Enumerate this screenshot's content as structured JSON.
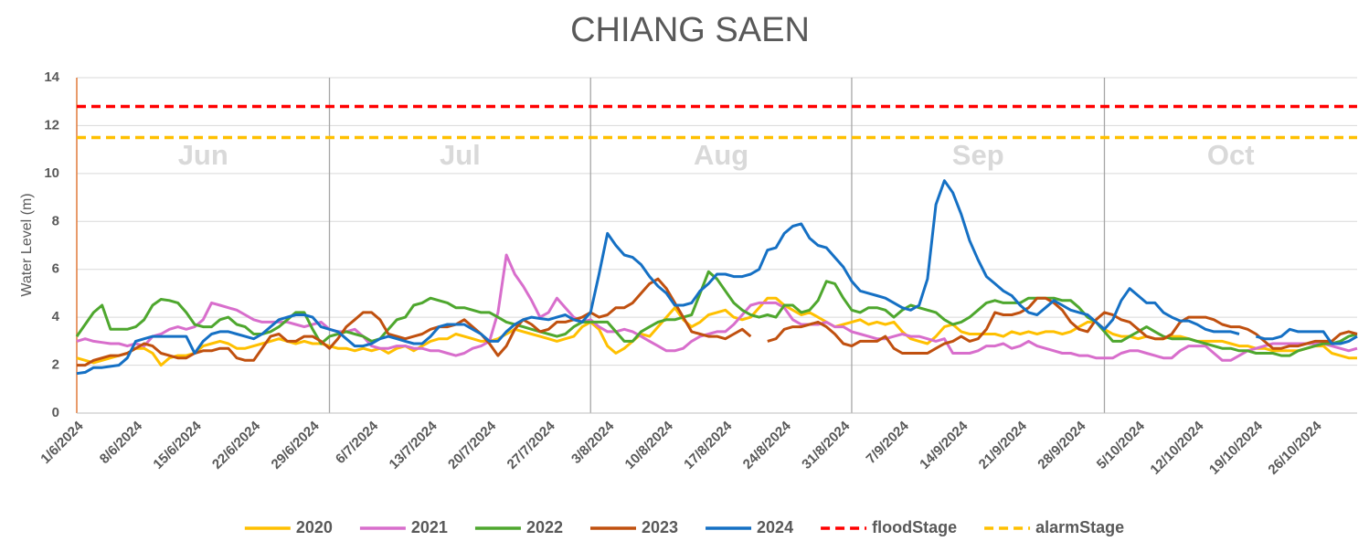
{
  "chart_data": {
    "type": "line",
    "title": "CHIANG SAEN",
    "ylabel": "Water Level (m)",
    "ylim": [
      0,
      14
    ],
    "yticks": [
      0,
      2,
      4,
      6,
      8,
      10,
      12,
      14
    ],
    "grid": true,
    "legend": "bottom",
    "month_labels": [
      "Jun",
      "Jul",
      "Aug",
      "Sep",
      "Oct"
    ],
    "x": [
      "1/6/2024",
      "2/6/2024",
      "3/6/2024",
      "4/6/2024",
      "5/6/2024",
      "6/6/2024",
      "7/6/2024",
      "8/6/2024",
      "9/6/2024",
      "10/6/2024",
      "11/6/2024",
      "12/6/2024",
      "13/6/2024",
      "14/6/2024",
      "15/6/2024",
      "16/6/2024",
      "17/6/2024",
      "18/6/2024",
      "19/6/2024",
      "20/6/2024",
      "21/6/2024",
      "22/6/2024",
      "23/6/2024",
      "24/6/2024",
      "25/6/2024",
      "26/6/2024",
      "27/6/2024",
      "28/6/2024",
      "29/6/2024",
      "30/6/2024",
      "1/7/2024",
      "2/7/2024",
      "3/7/2024",
      "4/7/2024",
      "5/7/2024",
      "6/7/2024",
      "7/7/2024",
      "8/7/2024",
      "9/7/2024",
      "10/7/2024",
      "11/7/2024",
      "12/7/2024",
      "13/7/2024",
      "14/7/2024",
      "15/7/2024",
      "16/7/2024",
      "17/7/2024",
      "18/7/2024",
      "19/7/2024",
      "20/7/2024",
      "21/7/2024",
      "22/7/2024",
      "23/7/2024",
      "24/7/2024",
      "25/7/2024",
      "26/7/2024",
      "27/7/2024",
      "28/7/2024",
      "29/7/2024",
      "30/7/2024",
      "31/7/2024",
      "1/8/2024",
      "2/8/2024",
      "3/8/2024",
      "4/8/2024",
      "5/8/2024",
      "6/8/2024",
      "7/8/2024",
      "8/8/2024",
      "9/8/2024",
      "10/8/2024",
      "11/8/2024",
      "12/8/2024",
      "13/8/2024",
      "14/8/2024",
      "15/8/2024",
      "16/8/2024",
      "17/8/2024",
      "18/8/2024",
      "19/8/2024",
      "20/8/2024",
      "21/8/2024",
      "22/8/2024",
      "23/8/2024",
      "24/8/2024",
      "25/8/2024",
      "26/8/2024",
      "27/8/2024",
      "28/8/2024",
      "29/8/2024",
      "30/8/2024",
      "31/8/2024",
      "1/9/2024",
      "2/9/2024",
      "3/9/2024",
      "4/9/2024",
      "5/9/2024",
      "6/9/2024",
      "7/9/2024",
      "8/9/2024",
      "9/9/2024",
      "10/9/2024",
      "11/9/2024",
      "12/9/2024",
      "13/9/2024",
      "14/9/2024",
      "15/9/2024",
      "16/9/2024",
      "17/9/2024",
      "18/9/2024",
      "19/9/2024",
      "20/9/2024",
      "21/9/2024",
      "22/9/2024",
      "23/9/2024",
      "24/9/2024",
      "25/9/2024",
      "26/9/2024",
      "27/9/2024",
      "28/9/2024",
      "29/9/2024",
      "30/9/2024",
      "1/10/2024",
      "2/10/2024",
      "3/10/2024",
      "4/10/2024",
      "5/10/2024",
      "6/10/2024",
      "7/10/2024",
      "8/10/2024",
      "9/10/2024",
      "10/10/2024",
      "11/10/2024",
      "12/10/2024",
      "13/10/2024",
      "14/10/2024",
      "15/10/2024",
      "16/10/2024",
      "17/10/2024",
      "18/10/2024",
      "19/10/2024",
      "20/10/2024",
      "21/10/2024",
      "22/10/2024",
      "23/10/2024",
      "24/10/2024",
      "25/10/2024",
      "26/10/2024",
      "27/10/2024",
      "28/10/2024",
      "29/10/2024",
      "30/10/2024",
      "31/10/2024"
    ],
    "xticks": [
      "1/6/2024",
      "8/6/2024",
      "15/6/2024",
      "22/6/2024",
      "29/6/2024",
      "6/7/2024",
      "13/7/2024",
      "20/7/2024",
      "27/7/2024",
      "3/8/2024",
      "10/8/2024",
      "17/8/2024",
      "24/8/2024",
      "31/8/2024",
      "7/9/2024",
      "14/9/2024",
      "21/9/2024",
      "28/9/2024",
      "5/10/2024",
      "12/10/2024",
      "19/10/2024",
      "26/10/2024"
    ],
    "series": [
      {
        "name": "2020",
        "color": "#ffc000",
        "values": [
          2.3,
          2.2,
          2.1,
          2.2,
          2.3,
          2.4,
          2.5,
          2.7,
          2.7,
          2.5,
          2.0,
          2.3,
          2.4,
          2.4,
          2.5,
          2.8,
          2.9,
          3.0,
          2.9,
          2.7,
          2.7,
          2.8,
          2.9,
          3.0,
          3.1,
          3.0,
          2.9,
          3.0,
          2.9,
          2.9,
          2.8,
          2.7,
          2.7,
          2.6,
          2.7,
          2.6,
          2.7,
          2.5,
          2.7,
          2.8,
          2.6,
          2.8,
          3.0,
          3.1,
          3.1,
          3.3,
          3.2,
          3.1,
          3.0,
          3.0,
          3.1,
          3.3,
          3.5,
          3.4,
          3.3,
          3.2,
          3.1,
          3.0,
          3.1,
          3.2,
          3.6,
          3.8,
          3.5,
          2.8,
          2.5,
          2.7,
          3.0,
          3.3,
          3.2,
          3.6,
          4.0,
          4.4,
          3.9,
          3.6,
          3.8,
          4.1,
          4.2,
          4.3,
          4.0,
          3.9,
          4.0,
          4.4,
          4.8,
          4.8,
          4.5,
          4.3,
          4.1,
          4.2,
          4.0,
          3.8,
          3.6,
          3.7,
          3.8,
          3.9,
          3.7,
          3.8,
          3.7,
          3.8,
          3.4,
          3.1,
          3.0,
          2.9,
          3.2,
          3.6,
          3.7,
          3.4,
          3.3,
          3.3,
          3.3,
          3.3,
          3.2,
          3.4,
          3.3,
          3.4,
          3.3,
          3.4,
          3.4,
          3.3,
          3.4,
          3.6,
          3.8,
          3.8,
          3.5,
          3.3,
          3.2,
          3.2,
          3.1,
          3.2,
          3.1,
          3.1,
          3.2,
          3.2,
          3.1,
          3.0,
          3.0,
          3.0,
          3.0,
          2.9,
          2.8,
          2.8,
          2.7,
          2.7,
          2.6,
          2.6,
          2.6,
          2.6,
          2.7,
          2.8,
          2.8,
          2.5,
          2.4,
          2.3,
          2.3
        ]
      },
      {
        "name": "2021",
        "color": "#d86ecc",
        "values": [
          3.0,
          3.1,
          3.0,
          2.95,
          2.9,
          2.9,
          2.8,
          2.9,
          2.8,
          3.2,
          3.3,
          3.5,
          3.6,
          3.5,
          3.6,
          3.9,
          4.6,
          4.5,
          4.4,
          4.3,
          4.1,
          3.9,
          3.8,
          3.8,
          3.8,
          3.8,
          3.7,
          3.6,
          3.7,
          3.8,
          3.5,
          3.4,
          3.4,
          3.5,
          3.2,
          2.8,
          2.7,
          2.7,
          2.8,
          2.8,
          2.7,
          2.7,
          2.6,
          2.6,
          2.5,
          2.4,
          2.5,
          2.7,
          2.8,
          3.0,
          4.2,
          6.6,
          5.8,
          5.3,
          4.7,
          4.0,
          4.2,
          4.8,
          4.4,
          4.0,
          3.8,
          3.9,
          3.6,
          3.4,
          3.4,
          3.5,
          3.4,
          3.2,
          3.0,
          2.8,
          2.6,
          2.6,
          2.7,
          3.0,
          3.2,
          3.3,
          3.4,
          3.4,
          3.7,
          4.1,
          4.5,
          4.6,
          4.6,
          4.6,
          4.4,
          3.9,
          3.7,
          3.7,
          3.7,
          3.8,
          3.6,
          3.6,
          3.4,
          3.3,
          3.2,
          3.1,
          3.1,
          3.2,
          3.3,
          3.2,
          3.2,
          3.1,
          3.0,
          3.1,
          2.5,
          2.5,
          2.5,
          2.6,
          2.8,
          2.8,
          2.9,
          2.7,
          2.8,
          3.0,
          2.8,
          2.7,
          2.6,
          2.5,
          2.5,
          2.4,
          2.4,
          2.3,
          2.3,
          2.3,
          2.5,
          2.6,
          2.6,
          2.5,
          2.4,
          2.3,
          2.3,
          2.6,
          2.8,
          2.8,
          2.8,
          2.5,
          2.2,
          2.2,
          2.4,
          2.6,
          2.7,
          2.8,
          2.9,
          2.9,
          2.9,
          2.9,
          2.9,
          2.9,
          2.9,
          2.8,
          2.7,
          2.6,
          2.7
        ]
      },
      {
        "name": "2022",
        "color": "#4ea72e",
        "values": [
          3.2,
          3.7,
          4.2,
          4.5,
          3.5,
          3.5,
          3.5,
          3.6,
          3.9,
          4.5,
          4.75,
          4.7,
          4.6,
          4.2,
          3.7,
          3.6,
          3.6,
          3.9,
          4.0,
          3.7,
          3.6,
          3.3,
          3.3,
          3.4,
          3.6,
          3.9,
          4.2,
          4.2,
          3.5,
          2.9,
          3.2,
          3.3,
          3.4,
          3.3,
          3.2,
          3.0,
          3.1,
          3.5,
          3.9,
          4.0,
          4.5,
          4.6,
          4.8,
          4.7,
          4.6,
          4.4,
          4.4,
          4.3,
          4.2,
          4.2,
          4.0,
          3.8,
          3.7,
          3.6,
          3.5,
          3.4,
          3.3,
          3.2,
          3.3,
          3.6,
          3.8,
          3.8,
          3.8,
          3.8,
          3.4,
          3.0,
          3.0,
          3.4,
          3.6,
          3.8,
          3.9,
          3.9,
          4.0,
          4.1,
          5.0,
          5.9,
          5.6,
          5.1,
          4.6,
          4.3,
          4.1,
          4.0,
          4.1,
          4.0,
          4.5,
          4.5,
          4.2,
          4.3,
          4.7,
          5.5,
          5.4,
          4.8,
          4.3,
          4.2,
          4.4,
          4.4,
          4.3,
          4.0,
          4.3,
          4.5,
          4.4,
          4.3,
          4.2,
          3.9,
          3.7,
          3.8,
          4.0,
          4.3,
          4.6,
          4.7,
          4.6,
          4.6,
          4.6,
          4.8,
          4.8,
          4.8,
          4.8,
          4.7,
          4.7,
          4.4,
          4.0,
          3.8,
          3.4,
          3.0,
          3.0,
          3.2,
          3.4,
          3.6,
          3.4,
          3.2,
          3.1,
          3.1,
          3.1,
          3.0,
          2.9,
          2.8,
          2.7,
          2.7,
          2.6,
          2.6,
          2.5,
          2.5,
          2.5,
          2.4,
          2.4,
          2.6,
          2.7,
          2.8,
          2.9,
          2.9,
          3.0,
          3.2,
          3.3
        ]
      },
      {
        "name": "2023",
        "color": "#c0500f",
        "values": [
          2.0,
          2.0,
          2.2,
          2.3,
          2.4,
          2.4,
          2.5,
          2.7,
          2.9,
          2.8,
          2.5,
          2.4,
          2.3,
          2.3,
          2.5,
          2.6,
          2.6,
          2.7,
          2.7,
          2.3,
          2.2,
          2.2,
          2.7,
          3.2,
          3.3,
          3.0,
          3.0,
          3.2,
          3.2,
          3.0,
          2.7,
          3.1,
          3.6,
          3.9,
          4.2,
          4.2,
          3.9,
          3.3,
          3.2,
          3.1,
          3.2,
          3.3,
          3.5,
          3.6,
          3.6,
          3.7,
          3.9,
          3.6,
          3.3,
          2.9,
          2.4,
          2.8,
          3.5,
          3.9,
          3.7,
          3.4,
          3.5,
          3.8,
          3.8,
          3.9,
          4.0,
          4.2,
          4.0,
          4.1,
          4.4,
          4.4,
          4.6,
          5.0,
          5.4,
          5.6,
          5.2,
          4.6,
          4.0,
          3.4,
          3.3,
          3.2,
          3.2,
          3.1,
          3.3,
          3.5,
          3.2,
          null,
          3.0,
          3.1,
          3.5,
          3.6,
          3.6,
          3.7,
          3.8,
          3.6,
          3.3,
          2.9,
          2.8,
          3.0,
          3.0,
          3.0,
          3.2,
          2.7,
          2.5,
          2.5,
          2.5,
          2.5,
          2.7,
          2.9,
          3.0,
          3.2,
          3.0,
          3.1,
          3.5,
          4.2,
          4.1,
          4.1,
          4.2,
          4.4,
          4.8,
          4.8,
          4.6,
          4.3,
          3.8,
          3.5,
          3.4,
          3.9,
          4.2,
          4.1,
          3.9,
          3.8,
          3.5,
          3.2,
          3.1,
          3.1,
          3.3,
          3.8,
          4.0,
          4.0,
          4.0,
          3.9,
          3.7,
          3.6,
          3.6,
          3.5,
          3.3,
          3.0,
          2.7,
          2.7,
          2.8,
          2.8,
          2.9,
          3.0,
          3.0,
          3.0,
          3.3,
          3.4,
          3.3
        ]
      },
      {
        "name": "2024",
        "color": "#1570c4",
        "values": [
          1.65,
          1.7,
          1.9,
          1.9,
          1.95,
          2.0,
          2.3,
          3.0,
          3.1,
          3.2,
          3.2,
          3.2,
          3.2,
          3.2,
          2.5,
          3.0,
          3.3,
          3.4,
          3.4,
          3.3,
          3.2,
          3.1,
          3.3,
          3.6,
          3.9,
          4.0,
          4.1,
          4.1,
          4.0,
          3.6,
          3.5,
          3.4,
          3.1,
          2.8,
          2.8,
          2.9,
          3.1,
          3.2,
          3.1,
          3.0,
          2.9,
          2.9,
          3.2,
          3.6,
          3.7,
          3.7,
          3.7,
          3.5,
          3.3,
          3.0,
          3.0,
          3.4,
          3.7,
          3.9,
          4.0,
          3.95,
          3.9,
          4.0,
          4.1,
          3.9,
          3.8,
          4.2,
          5.8,
          7.5,
          7.0,
          6.6,
          6.5,
          6.2,
          5.7,
          5.3,
          5.0,
          4.5,
          4.5,
          4.6,
          5.1,
          5.4,
          5.8,
          5.8,
          5.7,
          5.7,
          5.8,
          6.0,
          6.8,
          6.9,
          7.5,
          7.8,
          7.9,
          7.3,
          7.0,
          6.9,
          6.5,
          6.1,
          5.5,
          5.1,
          5.0,
          4.9,
          4.8,
          4.6,
          4.4,
          4.3,
          4.5,
          5.6,
          8.7,
          9.7,
          9.2,
          8.3,
          7.2,
          6.4,
          5.7,
          5.4,
          5.1,
          4.9,
          4.5,
          4.2,
          4.1,
          4.4,
          4.7,
          4.5,
          4.3,
          4.2,
          4.1,
          3.8,
          3.5,
          3.9,
          4.7,
          5.2,
          4.9,
          4.6,
          4.6,
          4.2,
          4.0,
          3.85,
          3.85,
          3.7,
          3.5,
          3.4,
          3.4,
          3.4,
          3.3,
          null,
          3.2,
          3.1,
          3.1,
          3.2,
          3.5,
          3.4,
          3.4,
          3.4,
          3.4,
          2.9,
          2.9,
          3.0,
          3.2
        ]
      },
      {
        "name": "floodStage",
        "color": "#ff0000",
        "dashed": true,
        "value": 12.8
      },
      {
        "name": "alarmStage",
        "color": "#ffc000",
        "dashed": true,
        "value": 11.5
      }
    ]
  }
}
